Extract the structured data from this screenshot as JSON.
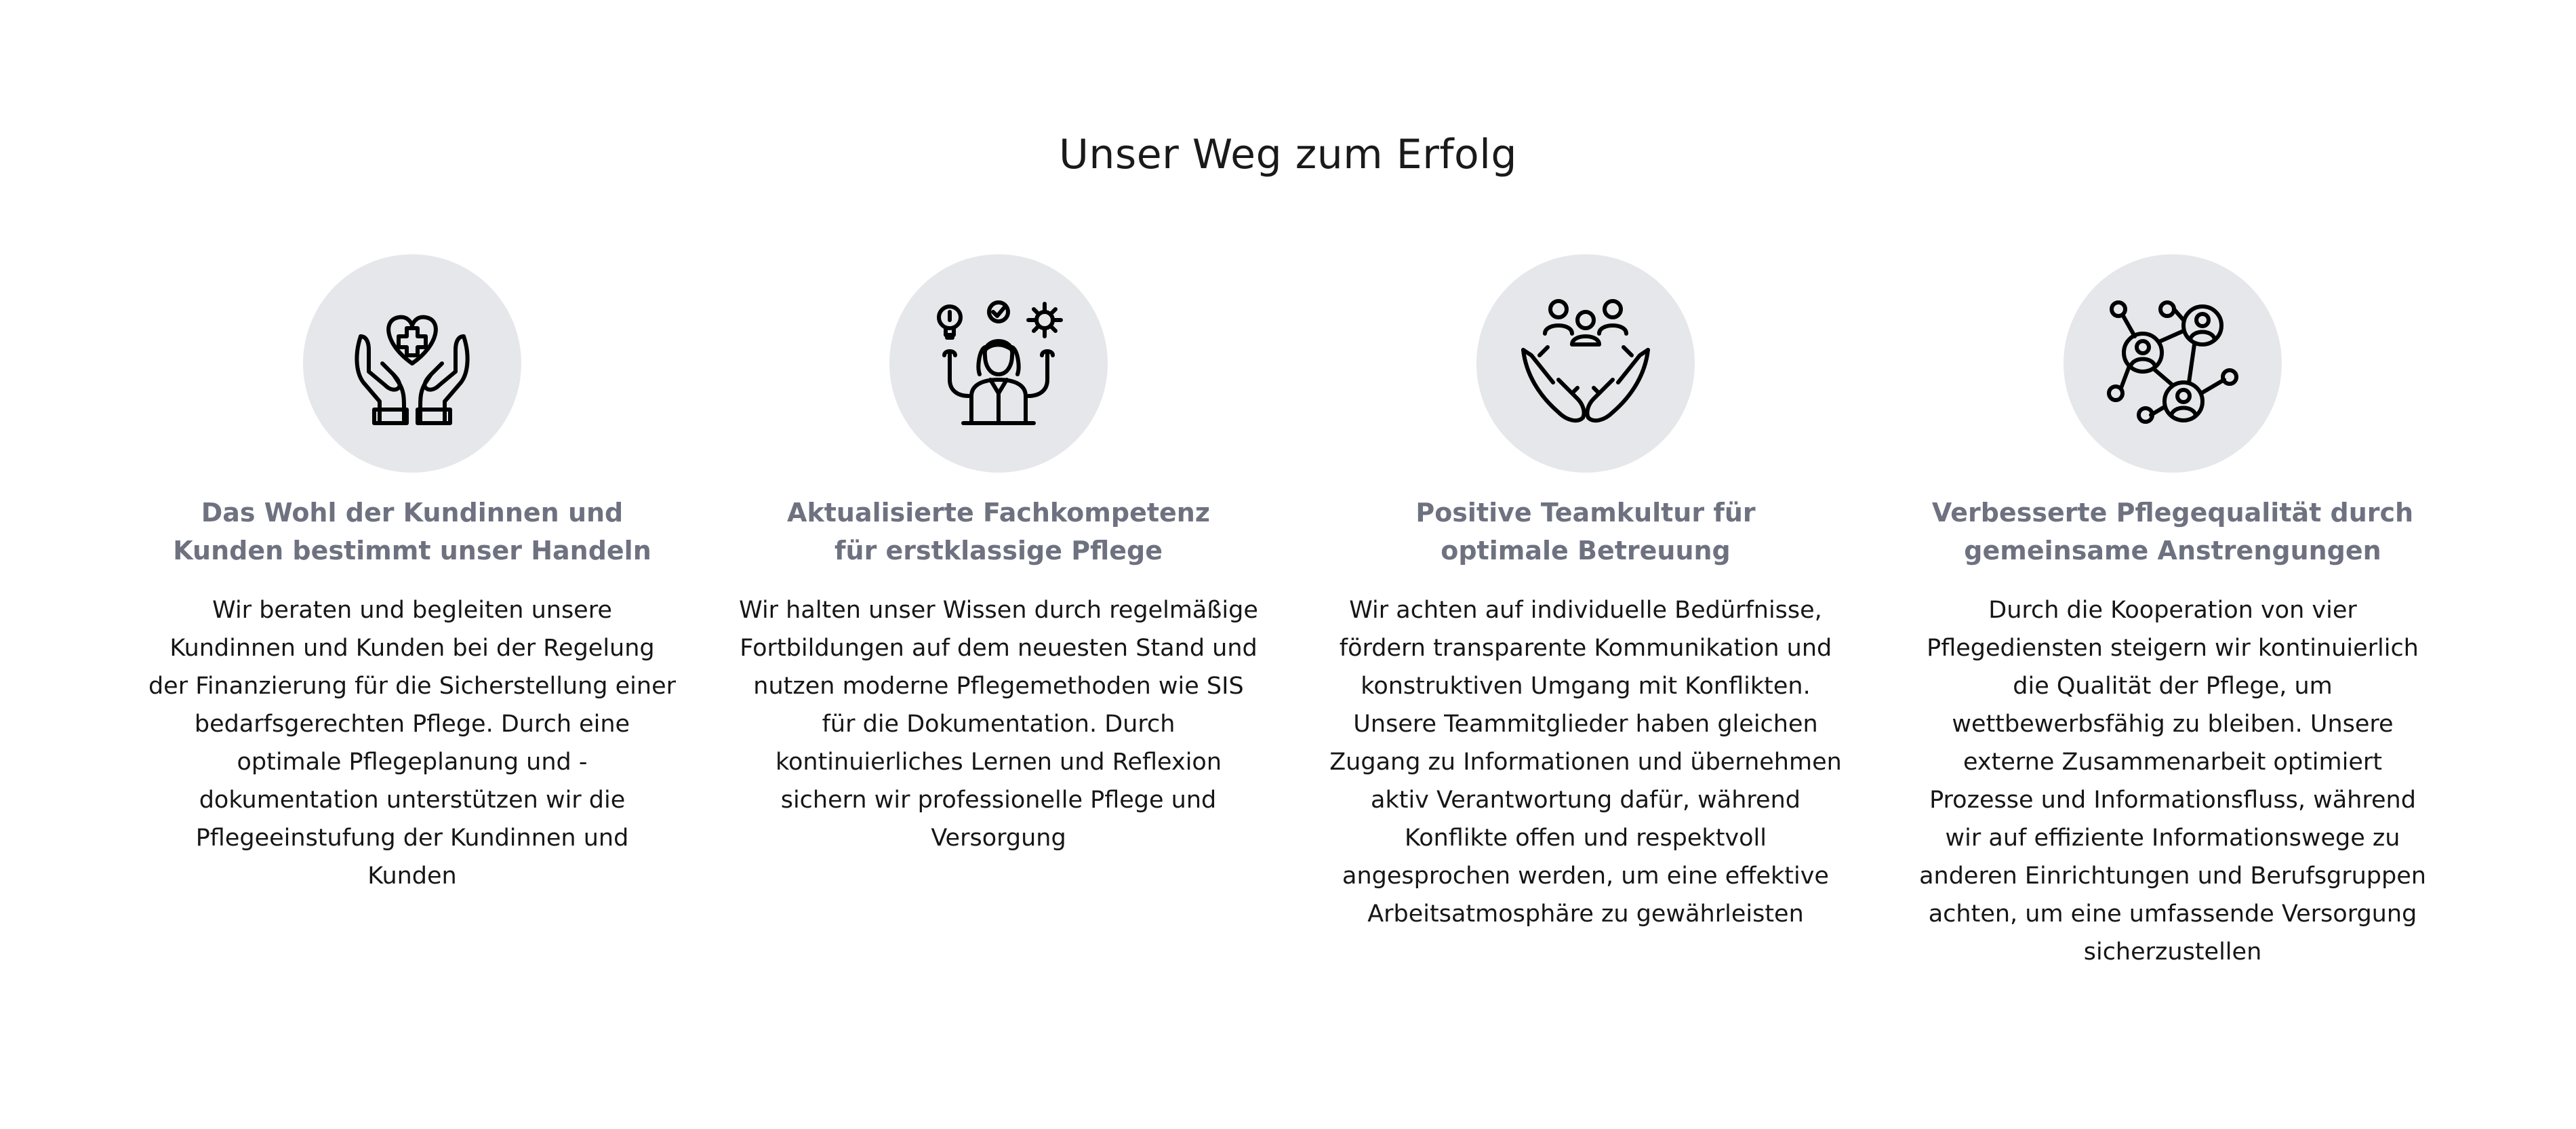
{
  "section": {
    "title": "Unser Weg zum Erfolg"
  },
  "cards": [
    {
      "icon": "hands-heart-cross-icon",
      "heading_lines": [
        "Das Wohl der Kundinnen und",
        "Kunden bestimmt unser Handeln"
      ],
      "text_lines": [
        "Wir beraten und begleiten unsere",
        "Kundinnen und Kunden bei der Regelung",
        "der Finanzierung für die Sicherstellung einer",
        "bedarfsgerechten Pflege. Durch eine",
        "optimale Pflegeplanung und -",
        "dokumentation unterstützen wir die",
        "Pflegeeinstufung der Kundinnen und",
        "Kunden"
      ]
    },
    {
      "icon": "expert-woman-ideas-icon",
      "heading_lines": [
        "Aktualisierte Fachkompetenz",
        "für erstklassige Pflege"
      ],
      "text_lines": [
        "Wir halten unser Wissen durch regelmäßige",
        "Fortbildungen auf dem neuesten Stand und",
        "nutzen moderne Pflegemethoden wie SIS",
        "für die Dokumentation. Durch",
        "kontinuierliches Lernen und Reflexion",
        "sichern wir professionelle Pflege und",
        "Versorgung"
      ]
    },
    {
      "icon": "hands-team-icon",
      "heading_lines": [
        "Positive Teamkultur für",
        "optimale Betreuung"
      ],
      "text_lines": [
        "Wir achten auf individuelle Bedürfnisse,",
        "fördern transparente Kommunikation und",
        "konstruktiven Umgang mit Konflikten.",
        "Unsere Teammitglieder haben gleichen",
        "Zugang zu Informationen und übernehmen",
        "aktiv Verantwortung dafür, während",
        "Konflikte offen und respektvoll",
        "angesprochen werden, um eine effektive",
        "Arbeitsatmosphäre zu gewährleisten"
      ]
    },
    {
      "icon": "network-people-icon",
      "heading_lines": [
        "Verbesserte Pflegequalität durch",
        "gemeinsame Anstrengungen"
      ],
      "text_lines": [
        "Durch die Kooperation von vier",
        "Pflegediensten steigern wir kontinuierlich",
        "die Qualität der Pflege, um",
        "wettbewerbsfähig zu bleiben. Unsere",
        "externe Zusammenarbeit optimiert",
        "Prozesse und Informationsfluss, während",
        "wir auf effiziente Informationswege zu",
        "anderen Einrichtungen und Berufsgruppen",
        "achten, um eine umfassende Versorgung",
        "sicherzustellen"
      ]
    }
  ]
}
